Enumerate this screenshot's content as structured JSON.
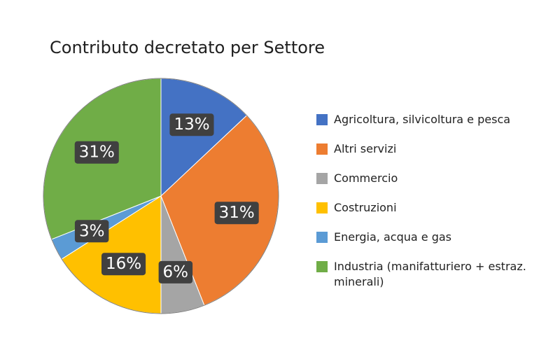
{
  "chart_data": {
    "type": "pie",
    "title": "Contributo decretato per Settore",
    "categories": [
      "Agricoltura, silvicoltura e pesca",
      "Altri servizi",
      "Commercio",
      "Costruzioni",
      "Energia, acqua e gas",
      "Industria (manifatturiero + estraz. minerali)"
    ],
    "values": [
      13,
      31,
      6,
      16,
      3,
      31
    ],
    "labels": [
      "13%",
      "31%",
      "6%",
      "16%",
      "3%",
      "31%"
    ],
    "colors": [
      "#4472C4",
      "#ED7D31",
      "#A5A5A5",
      "#FFC000",
      "#5B9BD5",
      "#70AD47"
    ],
    "legend_position": "right",
    "start_angle": "12 o'clock",
    "direction": "clockwise"
  }
}
